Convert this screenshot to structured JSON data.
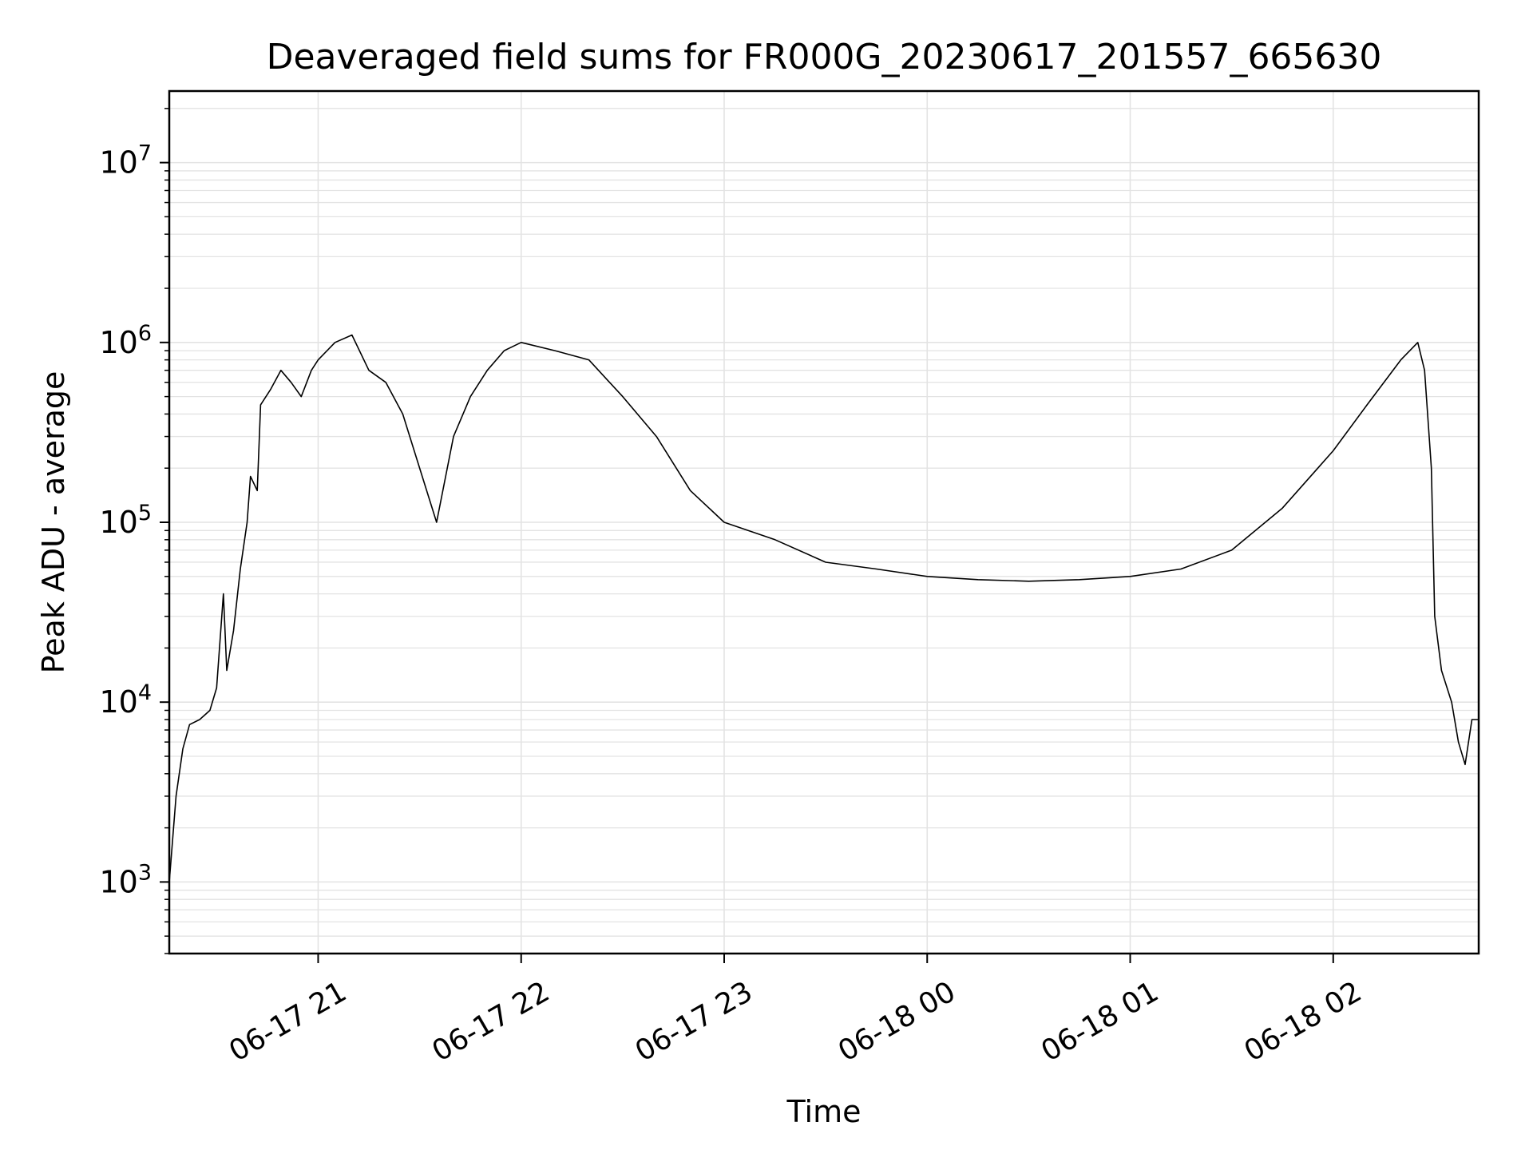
{
  "chart_data": {
    "type": "line",
    "title": "Deaveraged field sums for FR000G_20230617_201557_665630",
    "xlabel": "Time",
    "ylabel": "Peak ADU - average",
    "yscale": "log",
    "grid": true,
    "grid_color": "#e3e3e3",
    "line_color": "#000000",
    "xlim": [
      "2023-06-17 20:16",
      "2023-06-18 02:43"
    ],
    "ylim": [
      400,
      25000000
    ],
    "x_ticks": [
      {
        "value": "2023-06-17 21:00",
        "label": "06-17 21"
      },
      {
        "value": "2023-06-17 22:00",
        "label": "06-17 22"
      },
      {
        "value": "2023-06-17 23:00",
        "label": "06-17 23"
      },
      {
        "value": "2023-06-18 00:00",
        "label": "06-18 00"
      },
      {
        "value": "2023-06-18 01:00",
        "label": "06-18 01"
      },
      {
        "value": "2023-06-18 02:00",
        "label": "06-18 02"
      }
    ],
    "y_ticks": [
      {
        "value": 1000,
        "base": "10",
        "exp": "3"
      },
      {
        "value": 10000,
        "base": "10",
        "exp": "4"
      },
      {
        "value": 100000,
        "base": "10",
        "exp": "5"
      },
      {
        "value": 1000000,
        "base": "10",
        "exp": "6"
      },
      {
        "value": 10000000,
        "base": "10",
        "exp": "7"
      }
    ],
    "series": [
      {
        "values": [
          [
            "2023-06-17 20:16",
            1000
          ],
          [
            "2023-06-17 20:18",
            3000
          ],
          [
            "2023-06-17 20:20",
            5500
          ],
          [
            "2023-06-17 20:22",
            7500
          ],
          [
            "2023-06-17 20:25",
            8000
          ],
          [
            "2023-06-17 20:28",
            9000
          ],
          [
            "2023-06-17 20:30",
            12000
          ],
          [
            "2023-06-17 20:32",
            40000
          ],
          [
            "2023-06-17 20:33",
            15000
          ],
          [
            "2023-06-17 20:35",
            25000
          ],
          [
            "2023-06-17 20:37",
            55000
          ],
          [
            "2023-06-17 20:39",
            100000
          ],
          [
            "2023-06-17 20:40",
            180000
          ],
          [
            "2023-06-17 20:42",
            150000
          ],
          [
            "2023-06-17 20:43",
            450000
          ],
          [
            "2023-06-17 20:46",
            550000
          ],
          [
            "2023-06-17 20:49",
            700000
          ],
          [
            "2023-06-17 20:52",
            600000
          ],
          [
            "2023-06-17 20:55",
            500000
          ],
          [
            "2023-06-17 20:58",
            700000
          ],
          [
            "2023-06-17 21:00",
            800000
          ],
          [
            "2023-06-17 21:05",
            1000000
          ],
          [
            "2023-06-17 21:10",
            1100000
          ],
          [
            "2023-06-17 21:15",
            700000
          ],
          [
            "2023-06-17 21:20",
            600000
          ],
          [
            "2023-06-17 21:25",
            400000
          ],
          [
            "2023-06-17 21:30",
            200000
          ],
          [
            "2023-06-17 21:35",
            100000
          ],
          [
            "2023-06-17 21:40",
            300000
          ],
          [
            "2023-06-17 21:45",
            500000
          ],
          [
            "2023-06-17 21:50",
            700000
          ],
          [
            "2023-06-17 21:55",
            900000
          ],
          [
            "2023-06-17 22:00",
            1000000
          ],
          [
            "2023-06-17 22:10",
            900000
          ],
          [
            "2023-06-17 22:20",
            800000
          ],
          [
            "2023-06-17 22:30",
            500000
          ],
          [
            "2023-06-17 22:40",
            300000
          ],
          [
            "2023-06-17 22:50",
            150000
          ],
          [
            "2023-06-17 23:00",
            100000
          ],
          [
            "2023-06-17 23:15",
            80000
          ],
          [
            "2023-06-17 23:30",
            60000
          ],
          [
            "2023-06-17 23:45",
            55000
          ],
          [
            "2023-06-18 00:00",
            50000
          ],
          [
            "2023-06-18 00:15",
            48000
          ],
          [
            "2023-06-18 00:30",
            47000
          ],
          [
            "2023-06-18 00:45",
            48000
          ],
          [
            "2023-06-18 01:00",
            50000
          ],
          [
            "2023-06-18 01:15",
            55000
          ],
          [
            "2023-06-18 01:30",
            70000
          ],
          [
            "2023-06-18 01:45",
            120000
          ],
          [
            "2023-06-18 02:00",
            250000
          ],
          [
            "2023-06-18 02:10",
            450000
          ],
          [
            "2023-06-18 02:20",
            800000
          ],
          [
            "2023-06-18 02:25",
            1000000
          ],
          [
            "2023-06-18 02:27",
            700000
          ],
          [
            "2023-06-18 02:29",
            200000
          ],
          [
            "2023-06-18 02:30",
            30000
          ],
          [
            "2023-06-18 02:32",
            15000
          ],
          [
            "2023-06-18 02:35",
            10000
          ],
          [
            "2023-06-18 02:37",
            6000
          ],
          [
            "2023-06-18 02:39",
            4500
          ],
          [
            "2023-06-18 02:41",
            8000
          ],
          [
            "2023-06-18 02:43",
            8000
          ]
        ]
      }
    ]
  }
}
